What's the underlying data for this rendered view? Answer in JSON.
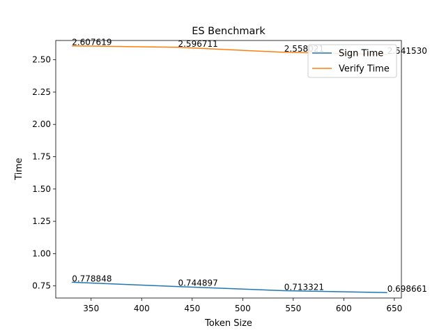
{
  "chart_data": {
    "type": "line",
    "title": "ES Benchmark",
    "xlabel": "Token Size",
    "ylabel": "Time",
    "xlim": [
      315,
      657
    ],
    "ylim": [
      0.6565,
      2.6494
    ],
    "xticks": [
      350,
      400,
      450,
      500,
      550,
      600,
      650
    ],
    "yticks": [
      0.75,
      1.0,
      1.25,
      1.5,
      1.75,
      2.0,
      2.25,
      2.5
    ],
    "ytick_labels": [
      "0.75",
      "1.00",
      "1.25",
      "1.50",
      "1.75",
      "2.00",
      "2.25",
      "2.50"
    ],
    "grid": false,
    "legend": "upper-right",
    "series": [
      {
        "name": "Sign Time",
        "color": "#1f77b4",
        "x": [
          331,
          436,
          541,
          643
        ],
        "y": [
          0.778848,
          0.744897,
          0.713321,
          0.698661
        ],
        "labels": [
          "0.778848",
          "0.744897",
          "0.713321",
          "0.698661"
        ]
      },
      {
        "name": "Verify Time",
        "color": "#ff7f0e",
        "x": [
          331,
          436,
          541,
          643
        ],
        "y": [
          2.607619,
          2.596711,
          2.558021,
          2.54153
        ],
        "labels": [
          "2.607619",
          "2.596711",
          "2.558021",
          "2.541530"
        ]
      }
    ]
  }
}
